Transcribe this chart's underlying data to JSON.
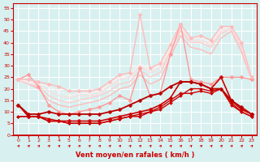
{
  "x": [
    0,
    1,
    2,
    3,
    4,
    5,
    6,
    7,
    8,
    9,
    10,
    11,
    12,
    13,
    14,
    15,
    16,
    17,
    18,
    19,
    20,
    21,
    22,
    23
  ],
  "lines": [
    {
      "y": [
        13,
        8,
        8,
        6,
        6,
        6,
        6,
        6,
        6,
        7,
        8,
        9,
        10,
        11,
        13,
        16,
        23,
        23,
        22,
        20,
        25,
        15,
        11,
        9
      ],
      "color": "#cc0000",
      "lw": 1.2,
      "marker": "D",
      "ms": 2.5,
      "zorder": 5
    },
    {
      "y": [
        8,
        8,
        8,
        6,
        6,
        5,
        5,
        5,
        5,
        6,
        7,
        8,
        8,
        10,
        11,
        14,
        17,
        20,
        20,
        19,
        20,
        14,
        10,
        8
      ],
      "color": "#cc0000",
      "lw": 1.0,
      "marker": "D",
      "ms": 2.0,
      "zorder": 4
    },
    {
      "y": [
        8,
        8,
        8,
        7,
        6,
        5,
        5,
        5,
        5,
        6,
        7,
        8,
        9,
        10,
        12,
        15,
        18,
        18,
        19,
        18,
        20,
        13,
        10,
        8
      ],
      "color": "#cc0000",
      "lw": 1.0,
      "marker": "D",
      "ms": 2.0,
      "zorder": 4
    },
    {
      "y": [
        13,
        9,
        9,
        10,
        9,
        9,
        9,
        9,
        9,
        10,
        11,
        13,
        15,
        17,
        18,
        21,
        23,
        23,
        22,
        20,
        20,
        15,
        12,
        9
      ],
      "color": "#bb0000",
      "lw": 1.3,
      "marker": "D",
      "ms": 2.5,
      "zorder": 5
    },
    {
      "y": [
        24,
        26,
        21,
        13,
        10,
        9,
        10,
        11,
        12,
        14,
        17,
        15,
        29,
        17,
        18,
        35,
        48,
        24,
        23,
        22,
        25,
        25,
        25,
        24
      ],
      "color": "#ff9999",
      "lw": 1.0,
      "marker": "D",
      "ms": 2.5,
      "zorder": 3
    },
    {
      "y": [
        24,
        22,
        20,
        15,
        13,
        12,
        13,
        14,
        15,
        17,
        20,
        21,
        26,
        22,
        24,
        34,
        43,
        38,
        37,
        35,
        42,
        45,
        36,
        24
      ],
      "color": "#ffbbbb",
      "lw": 1.0,
      "marker": null,
      "ms": 0,
      "zorder": 2
    },
    {
      "y": [
        24,
        22,
        21,
        17,
        15,
        14,
        15,
        16,
        17,
        19,
        22,
        23,
        28,
        25,
        27,
        36,
        45,
        40,
        40,
        38,
        44,
        46,
        38,
        25
      ],
      "color": "#ffcccc",
      "lw": 1.0,
      "marker": null,
      "ms": 0,
      "zorder": 2
    },
    {
      "y": [
        24,
        23,
        22,
        19,
        17,
        16,
        17,
        17,
        18,
        21,
        24,
        25,
        30,
        27,
        29,
        37,
        46,
        41,
        41,
        39,
        45,
        46,
        39,
        25
      ],
      "color": "#ffdddd",
      "lw": 1.0,
      "marker": null,
      "ms": 0,
      "zorder": 2
    },
    {
      "y": [
        24,
        23,
        22,
        21,
        19,
        17,
        18,
        18,
        19,
        22,
        25,
        26,
        31,
        28,
        30,
        38,
        47,
        42,
        42,
        40,
        46,
        47,
        40,
        25
      ],
      "color": "#ffeeee",
      "lw": 1.0,
      "marker": null,
      "ms": 0,
      "zorder": 2
    },
    {
      "y": [
        24,
        24,
        23,
        22,
        21,
        19,
        19,
        19,
        20,
        23,
        26,
        27,
        52,
        29,
        31,
        39,
        48,
        42,
        43,
        41,
        47,
        47,
        40,
        25
      ],
      "color": "#ffbbbb",
      "lw": 1.0,
      "marker": "D",
      "ms": 2.5,
      "zorder": 3
    }
  ],
  "ylim": [
    0,
    57
  ],
  "yticks": [
    0,
    5,
    10,
    15,
    20,
    25,
    30,
    35,
    40,
    45,
    50,
    55
  ],
  "xticks": [
    0,
    1,
    2,
    3,
    4,
    5,
    6,
    7,
    8,
    9,
    10,
    11,
    12,
    13,
    14,
    15,
    16,
    17,
    18,
    19,
    20,
    21,
    22,
    23
  ],
  "xlabel": "Vent moyen/en rafales ( km/h )",
  "bg_color": "#d8f0f0",
  "grid_color": "#ffffff",
  "axis_color": "#cc0000",
  "tick_color": "#cc0000",
  "label_color": "#cc0000"
}
